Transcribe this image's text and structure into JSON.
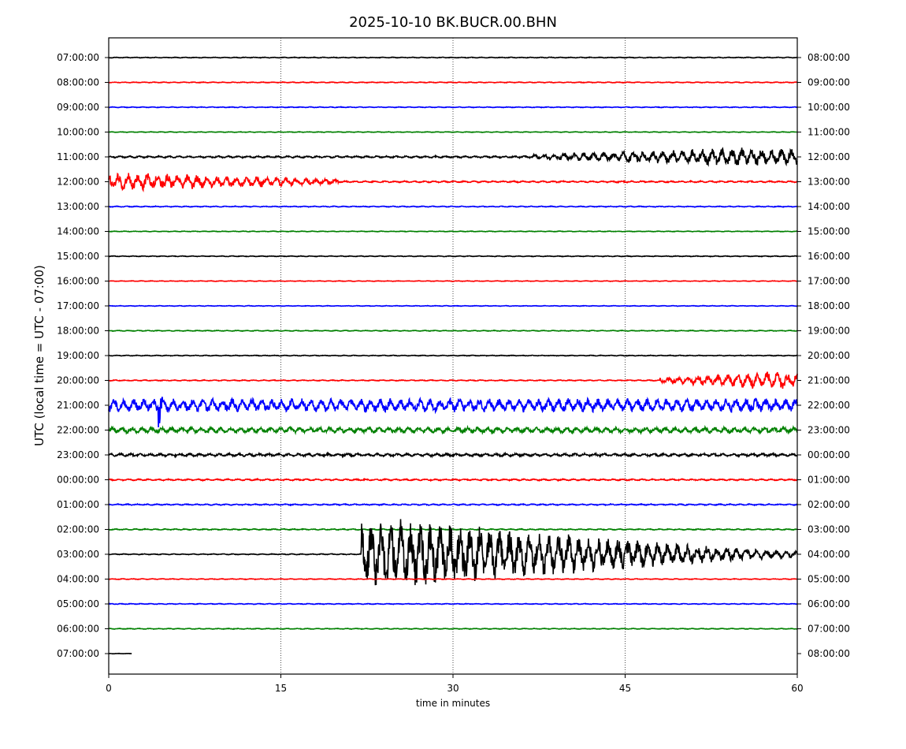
{
  "chart_data": {
    "type": "line",
    "title": "2025-10-10 BK.BUCR.00.BHN",
    "xlabel": "time in minutes",
    "ylabel": "UTC (local time = UTC - 07:00)",
    "xlim": [
      0,
      60
    ],
    "x_ticks": [
      "0",
      "15",
      "30",
      "45",
      "60"
    ],
    "x_tick_values": [
      0,
      15,
      30,
      45,
      60
    ],
    "grid": "vertical dotted lines at 15, 30, 45",
    "line_colors": [
      "#000000",
      "#ff0000",
      "#0000ff",
      "#008000"
    ],
    "rows": [
      {
        "left": "07:00:00",
        "right": "08:00:00",
        "color": "#000000",
        "level": 0.5,
        "end_min": 60
      },
      {
        "left": "08:00:00",
        "right": "09:00:00",
        "color": "#ff0000",
        "level": 0.5,
        "end_min": 60
      },
      {
        "left": "09:00:00",
        "right": "10:00:00",
        "color": "#0000ff",
        "level": 0.5,
        "end_min": 60
      },
      {
        "left": "10:00:00",
        "right": "11:00:00",
        "color": "#008000",
        "level": 0.4,
        "end_min": 60
      },
      {
        "left": "11:00:00",
        "right": "12:00:00",
        "color": "#000000",
        "level": 1.2,
        "end_min": 60
      },
      {
        "left": "12:00:00",
        "right": "13:00:00",
        "color": "#ff0000",
        "level": 1.0,
        "end_min": 60
      },
      {
        "left": "13:00:00",
        "right": "14:00:00",
        "color": "#0000ff",
        "level": 0.6,
        "end_min": 60
      },
      {
        "left": "14:00:00",
        "right": "15:00:00",
        "color": "#008000",
        "level": 0.4,
        "end_min": 60
      },
      {
        "left": "15:00:00",
        "right": "16:00:00",
        "color": "#000000",
        "level": 0.5,
        "end_min": 60
      },
      {
        "left": "16:00:00",
        "right": "17:00:00",
        "color": "#ff0000",
        "level": 0.4,
        "end_min": 60
      },
      {
        "left": "17:00:00",
        "right": "18:00:00",
        "color": "#0000ff",
        "level": 0.4,
        "end_min": 60
      },
      {
        "left": "18:00:00",
        "right": "19:00:00",
        "color": "#008000",
        "level": 0.5,
        "end_min": 60
      },
      {
        "left": "19:00:00",
        "right": "20:00:00",
        "color": "#000000",
        "level": 0.5,
        "end_min": 60
      },
      {
        "left": "20:00:00",
        "right": "21:00:00",
        "color": "#ff0000",
        "level": 0.6,
        "end_min": 60
      },
      {
        "left": "21:00:00",
        "right": "22:00:00",
        "color": "#0000ff",
        "level": 8.0,
        "end_min": 60
      },
      {
        "left": "22:00:00",
        "right": "23:00:00",
        "color": "#008000",
        "level": 3.5,
        "end_min": 60
      },
      {
        "left": "23:00:00",
        "right": "00:00:00",
        "color": "#000000",
        "level": 1.8,
        "end_min": 60
      },
      {
        "left": "00:00:00",
        "right": "01:00:00",
        "color": "#ff0000",
        "level": 1.0,
        "end_min": 60
      },
      {
        "left": "01:00:00",
        "right": "02:00:00",
        "color": "#0000ff",
        "level": 0.8,
        "end_min": 60
      },
      {
        "left": "02:00:00",
        "right": "03:00:00",
        "color": "#008000",
        "level": 0.7,
        "end_min": 60
      },
      {
        "left": "03:00:00",
        "right": "04:00:00",
        "color": "#000000",
        "level": 0.6,
        "end_min": 60
      },
      {
        "left": "04:00:00",
        "right": "05:00:00",
        "color": "#ff0000",
        "level": 0.5,
        "end_min": 60
      },
      {
        "left": "05:00:00",
        "right": "06:00:00",
        "color": "#0000ff",
        "level": 0.5,
        "end_min": 60
      },
      {
        "left": "06:00:00",
        "right": "07:00:00",
        "color": "#008000",
        "level": 0.5,
        "end_min": 60
      },
      {
        "left": "07:00:00",
        "right": "08:00:00",
        "color": "#000000",
        "level": 0.3,
        "end_min": 2
      }
    ],
    "events": [
      {
        "row": 20,
        "start_min": 22,
        "peak_min": 25,
        "end_min": 60,
        "note": "large oscillations, peaks near 23-28 minutes"
      },
      {
        "row": 14,
        "start_min": 4,
        "peak_min": 4.4,
        "end_min": 5,
        "note": "spike"
      },
      {
        "row": 4,
        "start_min": 37,
        "peak_min": 55.5,
        "end_min": 60,
        "note": "small wiggles"
      },
      {
        "row": 13,
        "start_min": 48,
        "peak_min": 58,
        "end_min": 60,
        "note": "noisy burst"
      },
      {
        "row": 5,
        "start_min": 0,
        "peak_min": 1,
        "end_min": 20,
        "note": "oscillation near start"
      }
    ]
  }
}
